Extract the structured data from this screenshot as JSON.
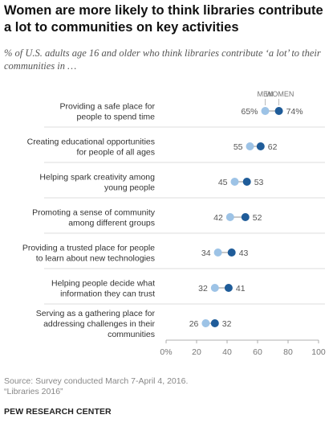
{
  "title": "Women are more likely to think libraries contribute a lot to communities on key activities",
  "subtitle": "% of U.S. adults age 16 and older who think libraries contribute ‘a lot’ to their communities in …",
  "source": "Source: Survey conducted March 7-April 4, 2016.",
  "report": "“Libraries 2016”",
  "brand": "PEW RESEARCH CENTER",
  "colors": {
    "men": "#9dc3e6",
    "women": "#1f5c99",
    "connector": "#c8c8c8",
    "divider": "#dddddd"
  },
  "chart_data": {
    "type": "dot",
    "legend": [
      "MEN",
      "WOMEN"
    ],
    "xlim": [
      0,
      100
    ],
    "x_ticks": [
      "0%",
      "20",
      "40",
      "60",
      "80",
      "100"
    ],
    "categories": [
      {
        "label": [
          "Providing a safe place for",
          "people to spend time"
        ],
        "men": 65,
        "women": 74,
        "men_label": "65%",
        "women_label": "74%"
      },
      {
        "label": [
          "Creating educational opportunities",
          "for people of all ages"
        ],
        "men": 55,
        "women": 62,
        "men_label": "55",
        "women_label": "62"
      },
      {
        "label": [
          "Helping spark creativity among",
          "young people"
        ],
        "men": 45,
        "women": 53,
        "men_label": "45",
        "women_label": "53"
      },
      {
        "label": [
          "Promoting a sense of community",
          "among different groups"
        ],
        "men": 42,
        "women": 52,
        "men_label": "42",
        "women_label": "52"
      },
      {
        "label": [
          "Providing a trusted place for people",
          "to learn about new technologies"
        ],
        "men": 34,
        "women": 43,
        "men_label": "34",
        "women_label": "43"
      },
      {
        "label": [
          "Helping people decide what",
          "information they can trust"
        ],
        "men": 32,
        "women": 41,
        "men_label": "32",
        "women_label": "41"
      },
      {
        "label": [
          "Serving as a gathering place for",
          "addressing challenges in their",
          "communities"
        ],
        "men": 26,
        "women": 32,
        "men_label": "26",
        "women_label": "32"
      }
    ]
  }
}
